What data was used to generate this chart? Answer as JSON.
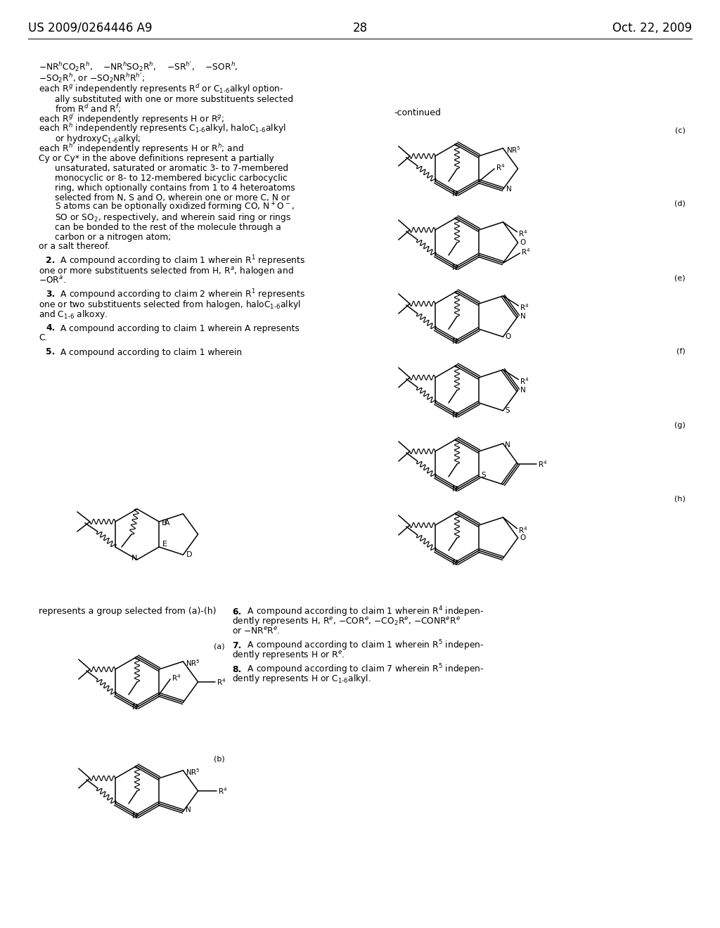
{
  "bg": "#ffffff",
  "header_left": "US 2009/0264446 A9",
  "header_right": "Oct. 22, 2009",
  "page_num": "28"
}
